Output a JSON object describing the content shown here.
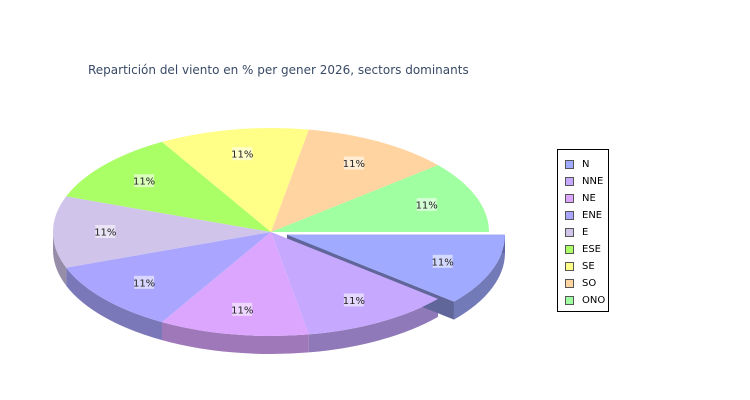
{
  "chart_data": {
    "type": "pie",
    "title": "Repartición del viento en % per gener 2026, sectors dominants",
    "categories": [
      "N",
      "NNE",
      "NE",
      "ENE",
      "E",
      "ESE",
      "SE",
      "SO",
      "ONO"
    ],
    "values": [
      11.11,
      11.11,
      11.11,
      11.11,
      11.11,
      11.11,
      11.11,
      11.11,
      11.11
    ],
    "data_labels": [
      "11%",
      "11%",
      "11%",
      "11%",
      "11%",
      "11%",
      "11%",
      "11%",
      "11%"
    ],
    "colors": [
      "#a0aaff",
      "#c6a8ff",
      "#dca6ff",
      "#aaa6ff",
      "#d0c4ea",
      "#aaff66",
      "#ffff88",
      "#ffd4a0",
      "#a0ffa0"
    ],
    "exploded": [
      "N"
    ],
    "style": "3d",
    "legend_position": "right"
  }
}
